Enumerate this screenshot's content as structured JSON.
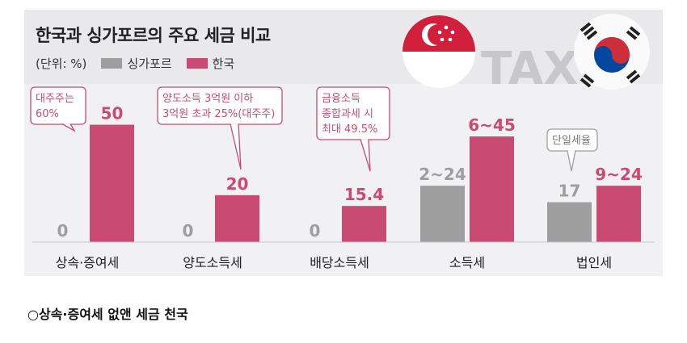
{
  "title": "한국과 싱가포르의 주요 세금 비교",
  "unit_note": "(단위: %)",
  "watermark": "TAX",
  "colors": {
    "singapore": "#9e9e9e",
    "korea": "#c94a72",
    "callout_border": "#c94a72",
    "callout_text": "#c94a72"
  },
  "chart_data": {
    "type": "bar",
    "categories": [
      "상속·증여세",
      "양도소득세",
      "배당소득세",
      "소득세",
      "법인세"
    ],
    "series": [
      {
        "name": "싱가포르",
        "values": [
          0,
          0,
          0,
          24,
          17
        ],
        "labels": [
          "0",
          "0",
          "0",
          "2~24",
          "17"
        ]
      },
      {
        "name": "한국",
        "values": [
          50,
          20,
          15.4,
          45,
          24
        ],
        "labels": [
          "50",
          "20",
          "15.4",
          "6~45",
          "9~24"
        ]
      }
    ],
    "ylim": [
      0,
      55
    ],
    "legend_position": "top-left",
    "grid": false,
    "annotations": [
      {
        "category": "상속·증여세",
        "text": [
          "대주주는",
          "60%"
        ]
      },
      {
        "category": "양도소득세",
        "text": [
          "양도소득 3억원 이하",
          "3억원 초과 25%(대주주)"
        ]
      },
      {
        "category": "배당소득세",
        "text": [
          "금융소득",
          "종합과세 시",
          "최대 49.5%"
        ]
      },
      {
        "category": "법인세",
        "text": [
          "단일세율"
        ]
      }
    ]
  },
  "caption": "○상속·증여세 없앤 세금 천국"
}
